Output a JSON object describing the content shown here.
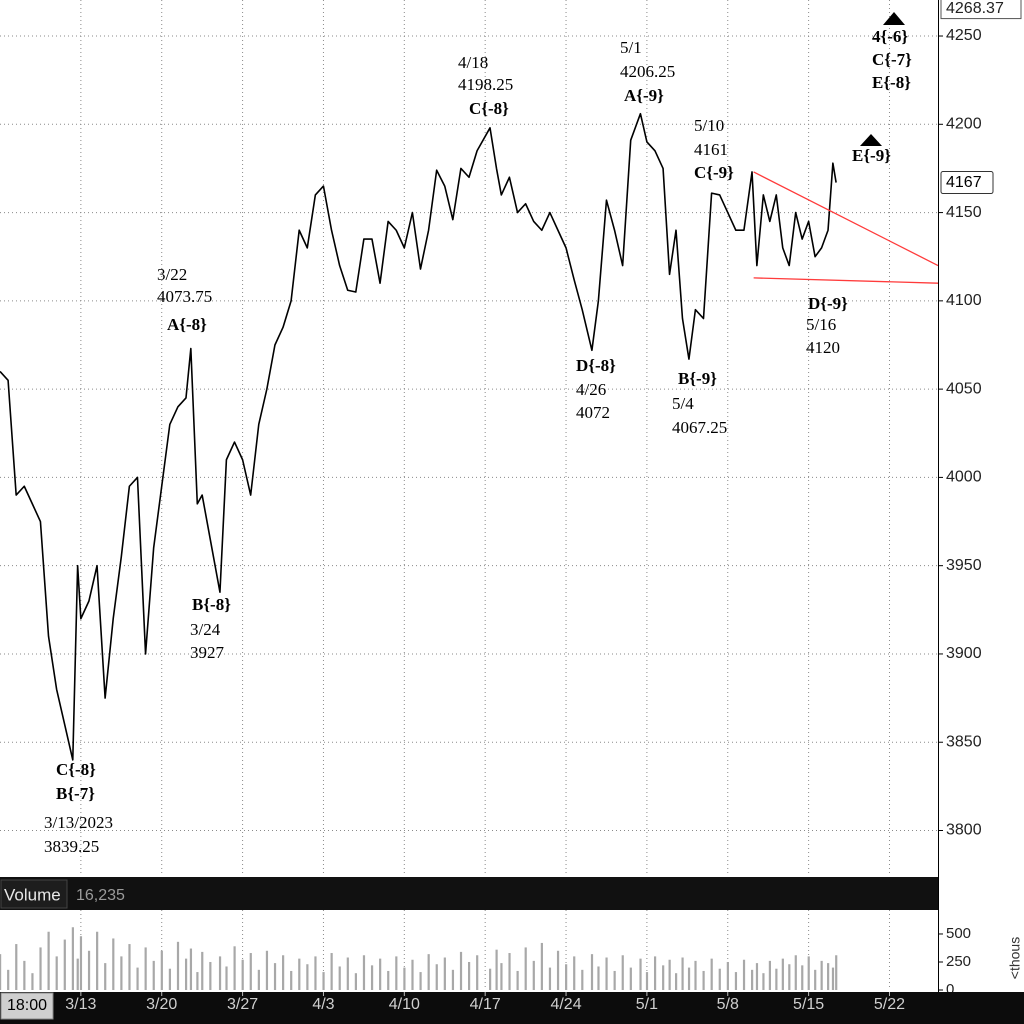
{
  "chart_data": {
    "type": "line",
    "x": [
      0,
      0.5,
      1,
      1.5,
      2,
      2.5,
      3,
      3.5,
      4,
      4.5,
      4.8,
      5,
      5.5,
      6,
      6.5,
      7,
      7.5,
      8,
      8.5,
      9,
      9.5,
      10,
      10.5,
      11,
      11.5,
      11.8,
      12.2,
      12.5,
      13,
      13.6,
      14,
      14.5,
      15,
      15.5,
      16,
      16.5,
      17,
      17.5,
      18,
      18.5,
      19,
      19.5,
      20,
      20.5,
      21,
      21.5,
      22,
      22.5,
      23,
      23.5,
      24,
      24.5,
      25,
      25.5,
      26,
      26.5,
      27,
      27.5,
      28,
      28.5,
      29,
      29.5,
      30.3,
      30.7,
      31,
      31.5,
      32,
      32.5,
      33,
      33.5,
      34,
      34.5,
      35,
      35.5,
      36,
      36.6,
      37,
      37.5,
      38,
      38.5,
      39,
      39.6,
      40,
      40.5,
      41,
      41.4,
      41.8,
      42.2,
      42.6,
      43,
      43.5,
      44,
      44.5,
      45,
      45.5,
      46,
      46.5,
      46.8,
      47.2,
      47.6,
      48,
      48.4,
      48.8,
      49.2,
      49.6,
      50,
      50.4,
      50.8,
      51.2,
      51.5,
      51.7
    ],
    "xlim": [
      0,
      58
    ],
    "xticks": [
      {
        "value": 5,
        "label": "3/13"
      },
      {
        "value": 10,
        "label": "3/20"
      },
      {
        "value": 15,
        "label": "3/27"
      },
      {
        "value": 20,
        "label": "4/3"
      },
      {
        "value": 25,
        "label": "4/10"
      },
      {
        "value": 30,
        "label": "4/17"
      },
      {
        "value": 35,
        "label": "4/24"
      },
      {
        "value": 40,
        "label": "5/1"
      },
      {
        "value": 45,
        "label": "5/8"
      },
      {
        "value": 50,
        "label": "5/15"
      },
      {
        "value": 55,
        "label": "5/22"
      }
    ],
    "ylim": [
      3774.8,
      4270.4
    ],
    "yticks": [
      3800,
      3850,
      3900,
      3950,
      4000,
      4050,
      4100,
      4150,
      4200,
      4250
    ],
    "grid": true,
    "series": [
      {
        "color": "#000000",
        "values": [
          4060,
          4055,
          3990,
          3995,
          3985,
          3975,
          3910,
          3880,
          3860,
          3840,
          3950,
          3920,
          3930,
          3950,
          3875,
          3920,
          3955,
          3995,
          4000,
          3900,
          3960,
          3995,
          4030,
          4040,
          4045,
          4073,
          3985,
          3990,
          3965,
          3935,
          4010,
          4020,
          4010,
          3990,
          4030,
          4050,
          4075,
          4085,
          4100,
          4140,
          4130,
          4160,
          4165,
          4140,
          4120,
          4106,
          4105,
          4135,
          4135,
          4110,
          4145,
          4140,
          4130,
          4150,
          4118,
          4140,
          4174,
          4165,
          4146,
          4175,
          4170,
          4185,
          4198,
          4175,
          4160,
          4170,
          4150,
          4155,
          4145,
          4140,
          4150,
          4140,
          4130,
          4112,
          4095,
          4072,
          4100,
          4157,
          4140,
          4120,
          4191,
          4206,
          4190,
          4185,
          4175,
          4115,
          4140,
          4090,
          4067,
          4095,
          4090,
          4161,
          4160,
          4150,
          4140,
          4140,
          4173,
          4120,
          4160,
          4145,
          4160,
          4130,
          4120,
          4150,
          4135,
          4145,
          4125,
          4130,
          4140,
          4178,
          4167
        ]
      }
    ],
    "trendlines": [
      {
        "color": "#ff3b3b",
        "x": [
          46.6,
          58
        ],
        "values": [
          4173,
          4120
        ]
      },
      {
        "color": "#ff3b3b",
        "x": [
          46.6,
          58
        ],
        "values": [
          4113,
          4110
        ]
      }
    ],
    "high_price": 4268.37,
    "last_price": 4167,
    "annotations": [
      {
        "lines": [
          "C{-8}",
          "B{-7}",
          "3/13/2023",
          "3839.25"
        ]
      },
      {
        "lines": [
          "3/22",
          "4073.75",
          "A{-8}"
        ]
      },
      {
        "lines": [
          "B{-8}",
          "3/24",
          "3927"
        ]
      },
      {
        "lines": [
          "4/18",
          "4198.25",
          "C{-8}"
        ]
      },
      {
        "lines": [
          "5/1",
          "4206.25",
          "A{-9}"
        ]
      },
      {
        "lines": [
          "5/10",
          "4161",
          "C{-9}"
        ]
      },
      {
        "lines": [
          "D{-8}",
          "4/26",
          "4072"
        ]
      },
      {
        "lines": [
          "B{-9}",
          "5/4",
          "4067.25"
        ]
      },
      {
        "lines": [
          "D{-9}",
          "5/16",
          "4120"
        ]
      },
      {
        "lines": [
          "E{-9}"
        ]
      },
      {
        "lines": [
          "4{-6}",
          "C{-7}",
          "E{-8}"
        ]
      }
    ],
    "volume": {
      "title": "Volume",
      "last": "16,235",
      "unit": "<thous",
      "color": "#a8a8a8",
      "ylim": [
        0,
        714
      ],
      "yticks": [
        0,
        250,
        500
      ],
      "values": [
        320,
        180,
        410,
        260,
        150,
        380,
        520,
        300,
        450,
        560,
        280,
        480,
        350,
        520,
        240,
        460,
        300,
        410,
        200,
        380,
        260,
        350,
        190,
        430,
        280,
        370,
        160,
        340,
        250,
        300,
        210,
        390,
        270,
        330,
        180,
        350,
        240,
        310,
        170,
        280,
        230,
        300,
        160,
        330,
        210,
        290,
        150,
        310,
        220,
        280,
        170,
        300,
        200,
        270,
        160,
        320,
        230,
        290,
        180,
        340,
        250,
        310,
        190,
        360,
        240,
        330,
        170,
        380,
        260,
        420,
        200,
        350,
        230,
        300,
        180,
        320,
        210,
        290,
        170,
        310,
        200,
        280,
        160,
        300,
        220,
        270,
        150,
        290,
        200,
        260,
        170,
        280,
        190,
        250,
        160,
        270,
        180,
        240,
        150,
        260,
        190,
        280,
        230,
        310,
        220,
        300,
        180,
        260,
        240,
        200,
        310
      ]
    },
    "session_label": "18:00"
  }
}
